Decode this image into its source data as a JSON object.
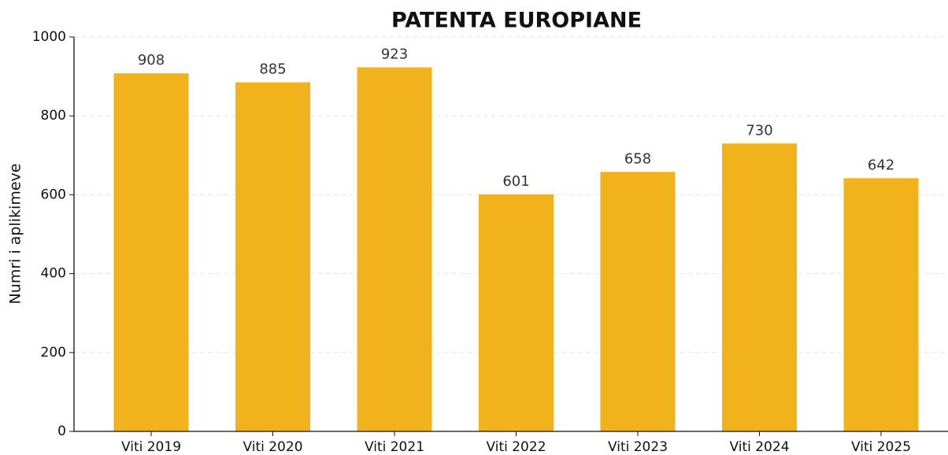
{
  "chart_data": {
    "type": "bar",
    "title": "PATENTA EUROPIANE",
    "y_label": "Numri i aplikimeve",
    "categories": [
      "Viti 2019",
      "Viti 2020",
      "Viti 2021",
      "Viti 2022",
      "Viti 2023",
      "Viti 2024",
      "Viti 2025"
    ],
    "values": [
      908,
      885,
      923,
      601,
      658,
      730,
      642
    ],
    "color": "#f2b21c",
    "ylim": [
      0,
      1000
    ],
    "yticks": [
      0,
      200,
      400,
      600,
      800,
      1000
    ],
    "grid": true
  }
}
